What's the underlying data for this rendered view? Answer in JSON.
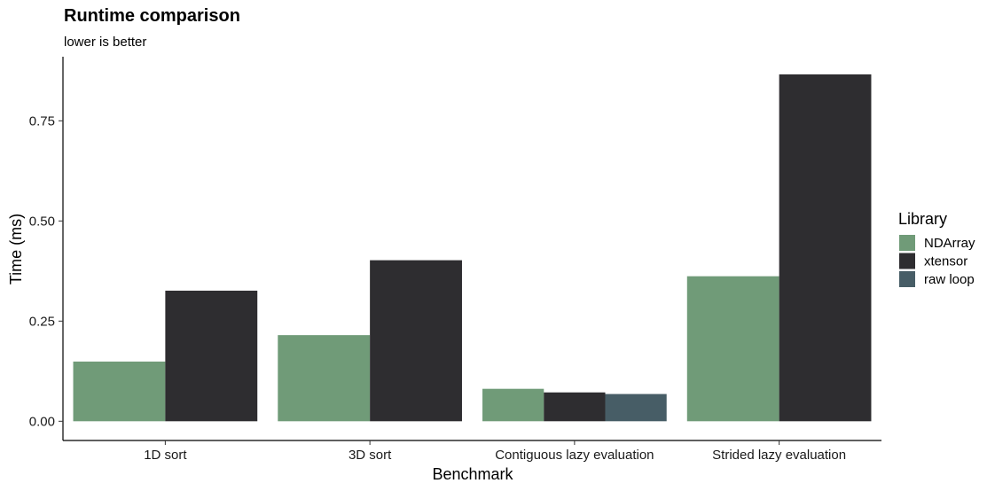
{
  "chart_data": {
    "type": "bar",
    "title": "Runtime comparison",
    "subtitle": "lower is better",
    "xlabel": "Benchmark",
    "ylabel": "Time (ms)",
    "ylim": [
      -0.048,
      0.91
    ],
    "yticks": [
      0.0,
      0.25,
      0.5,
      0.75
    ],
    "ytick_labels": [
      "0.00",
      "0.25",
      "0.50",
      "0.75"
    ],
    "categories": [
      "1D sort",
      "3D sort",
      "Contiguous lazy evaluation",
      "Strided lazy evaluation"
    ],
    "legend": {
      "title": "Library",
      "position": "right"
    },
    "grid": false,
    "series": [
      {
        "name": "NDArray",
        "color": "#709b78",
        "values": [
          0.149,
          0.215,
          0.081,
          0.362
        ]
      },
      {
        "name": "xtensor",
        "color": "#2e2d30",
        "values": [
          0.326,
          0.402,
          0.072,
          0.866
        ]
      },
      {
        "name": "raw loop",
        "color": "#475d66",
        "values": [
          null,
          null,
          0.068,
          null
        ]
      }
    ]
  }
}
